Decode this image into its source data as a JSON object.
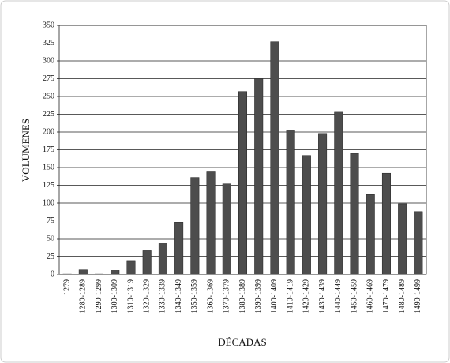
{
  "chart_data": {
    "type": "bar",
    "categories": [
      "1279",
      "1280-1289",
      "1290-1299",
      "1300-1309",
      "1310-1319",
      "1320-1329",
      "1330-1339",
      "1340-1349",
      "1350-1359",
      "1360-1369",
      "1370-1379",
      "1380-1389",
      "1390-1399",
      "1400-1409",
      "1410-1419",
      "1420-1429",
      "1430-1439",
      "1440-1449",
      "1450-1459",
      "1460-1469",
      "1470-1479",
      "1480-1489",
      "1490-1499"
    ],
    "values": [
      1,
      7,
      1,
      6,
      19,
      34,
      44,
      73,
      136,
      145,
      127,
      257,
      275,
      327,
      203,
      167,
      198,
      229,
      170,
      113,
      142,
      99,
      88
    ],
    "color": "#4d4d4d",
    "xlabel": "DÉCADAS",
    "ylabel": "VOLÚMENES",
    "ylim": [
      0,
      350
    ],
    "yticks": [
      0,
      25,
      50,
      75,
      100,
      125,
      150,
      175,
      200,
      225,
      250,
      275,
      300,
      325,
      350
    ],
    "grid": true
  }
}
